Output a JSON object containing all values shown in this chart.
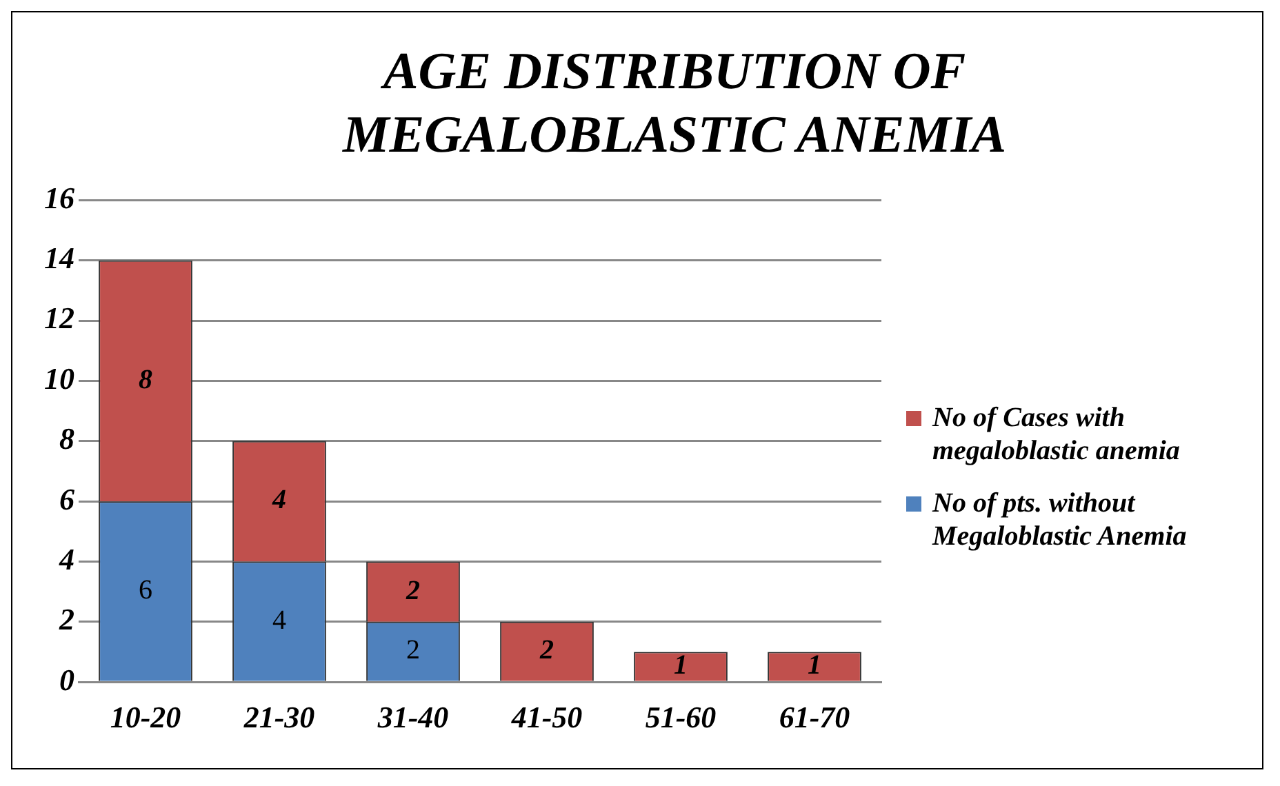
{
  "chart_data": {
    "type": "bar",
    "title": "AGE DISTRIBUTION OF MEGALOBLASTIC ANEMIA",
    "categories": [
      "10-20",
      "21-30",
      "31-40",
      "41-50",
      "51-60",
      "61-70"
    ],
    "stacked": true,
    "series": [
      {
        "name": "No of pts. without Megaloblastic Anemia",
        "color": "#4f81bd",
        "values": [
          6,
          4,
          2,
          null,
          null,
          null
        ]
      },
      {
        "name": "No of Cases with megaloblastic anemia",
        "color": "#c0504d",
        "values": [
          8,
          4,
          2,
          2,
          1,
          1
        ]
      }
    ],
    "ylim": [
      0,
      16
    ],
    "yticks": [
      0,
      2,
      4,
      6,
      8,
      10,
      12,
      14,
      16
    ],
    "grid": "y",
    "legend": "right",
    "data_labels": true
  }
}
